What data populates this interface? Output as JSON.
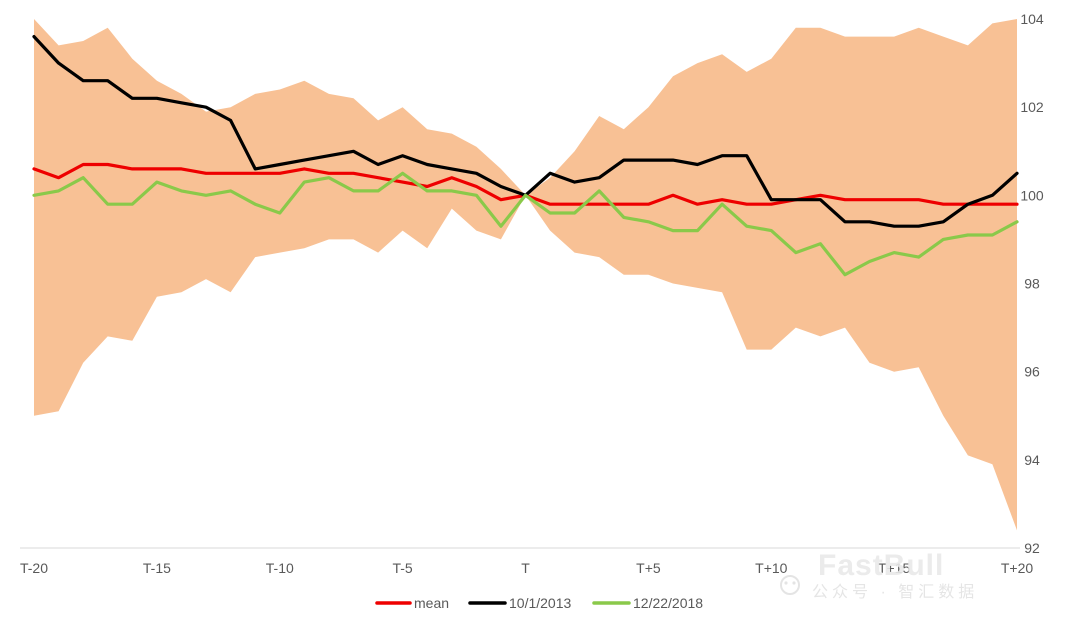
{
  "chart_data": {
    "type": "line",
    "title": "",
    "xlabel": "",
    "ylabel": "",
    "x_categories": [
      "T-20",
      "T-19",
      "T-18",
      "T-17",
      "T-16",
      "T-15",
      "T-14",
      "T-13",
      "T-12",
      "T-11",
      "T-10",
      "T-9",
      "T-8",
      "T-7",
      "T-6",
      "T-5",
      "T-4",
      "T-3",
      "T-2",
      "T-1",
      "T",
      "T+1",
      "T+2",
      "T+3",
      "T+4",
      "T+5",
      "T+6",
      "T+7",
      "T+8",
      "T+9",
      "T+10",
      "T+11",
      "T+12",
      "T+13",
      "T+14",
      "T+15",
      "T+16",
      "T+17",
      "T+18",
      "T+19",
      "T+20"
    ],
    "x_tick_labels": [
      "T-20",
      "T-15",
      "T-10",
      "T-5",
      "T",
      "T+5",
      "T+10",
      "T+15",
      "T+20"
    ],
    "ylim": [
      92,
      104
    ],
    "y_ticks": [
      92,
      94,
      96,
      98,
      100,
      102,
      104
    ],
    "y_axis_position": "right",
    "band": {
      "name": "range",
      "color": "#f8c195",
      "upper": [
        104.0,
        103.4,
        103.5,
        103.8,
        103.1,
        102.6,
        102.3,
        101.9,
        102.0,
        102.3,
        102.4,
        102.6,
        102.3,
        102.2,
        101.7,
        102.0,
        101.5,
        101.4,
        101.1,
        100.6,
        100.0,
        100.4,
        101.0,
        101.8,
        101.5,
        102.0,
        102.7,
        103.0,
        103.2,
        102.8,
        103.1,
        103.8,
        103.8,
        103.6,
        103.6,
        103.6,
        103.8,
        103.6,
        103.4,
        103.9,
        104.0
      ],
      "lower": [
        95.0,
        95.1,
        96.2,
        96.8,
        96.7,
        97.7,
        97.8,
        98.1,
        97.8,
        98.6,
        98.7,
        98.8,
        99.0,
        99.0,
        98.7,
        99.2,
        98.8,
        99.7,
        99.2,
        99.0,
        100.0,
        99.2,
        98.7,
        98.6,
        98.2,
        98.2,
        98.0,
        97.9,
        97.8,
        96.5,
        96.5,
        97.0,
        96.8,
        97.0,
        96.2,
        96.0,
        96.1,
        95.0,
        94.1,
        93.9,
        92.4
      ]
    },
    "series": [
      {
        "name": "mean",
        "color": "#ee0000",
        "values": [
          100.6,
          100.4,
          100.7,
          100.7,
          100.6,
          100.6,
          100.6,
          100.5,
          100.5,
          100.5,
          100.5,
          100.6,
          100.5,
          100.5,
          100.4,
          100.3,
          100.2,
          100.4,
          100.2,
          99.9,
          100.0,
          99.8,
          99.8,
          99.8,
          99.8,
          99.8,
          100.0,
          99.8,
          99.9,
          99.8,
          99.8,
          99.9,
          100.0,
          99.9,
          99.9,
          99.9,
          99.9,
          99.8,
          99.8,
          99.8,
          99.8
        ]
      },
      {
        "name": "10/1/2013",
        "color": "#000000",
        "values": [
          103.6,
          103.0,
          102.6,
          102.6,
          102.2,
          102.2,
          102.1,
          102.0,
          101.7,
          100.6,
          100.7,
          100.8,
          100.9,
          101.0,
          100.7,
          100.9,
          100.7,
          100.6,
          100.5,
          100.2,
          100.0,
          100.5,
          100.3,
          100.4,
          100.8,
          100.8,
          100.8,
          100.7,
          100.9,
          100.9,
          99.9,
          99.9,
          99.9,
          99.4,
          99.4,
          99.3,
          99.3,
          99.4,
          99.8,
          100.0,
          100.5
        ]
      },
      {
        "name": "12/22/2018",
        "color": "#8ac94a",
        "values": [
          100.0,
          100.1,
          100.4,
          99.8,
          99.8,
          100.3,
          100.1,
          100.0,
          100.1,
          99.8,
          99.6,
          100.3,
          100.4,
          100.1,
          100.1,
          100.5,
          100.1,
          100.1,
          100.0,
          99.3,
          100.0,
          99.6,
          99.6,
          100.1,
          99.5,
          99.4,
          99.2,
          99.2,
          99.8,
          99.3,
          99.2,
          98.7,
          98.9,
          98.2,
          98.5,
          98.7,
          98.6,
          99.0,
          99.1,
          99.1,
          99.4
        ]
      }
    ],
    "legend": {
      "placement": "bottom-center",
      "entries": [
        "mean",
        "10/1/2013",
        "12/22/2018"
      ]
    }
  },
  "watermark": {
    "brand": "FastBull",
    "subtitle": "公众号 · 智汇数据"
  }
}
